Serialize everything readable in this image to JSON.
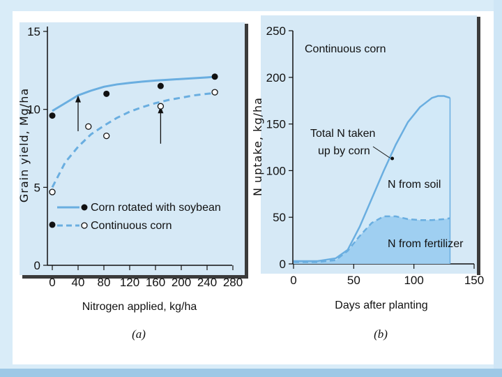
{
  "chart_data": [
    {
      "type": "line",
      "panel": "(a)",
      "xlabel": "Nitrogen applied, kg/ha",
      "ylabel": "Grain yield, Mg/ha",
      "xlim": [
        0,
        280
      ],
      "ylim": [
        0,
        15
      ],
      "x_ticks": [
        "0",
        "40",
        "80",
        "120",
        "160",
        "200",
        "240",
        "280"
      ],
      "y_ticks": [
        "0",
        "5",
        "10",
        "15"
      ],
      "legend": [
        {
          "label": "Corn rotated with soybean",
          "style": "solid",
          "marker": "filled"
        },
        {
          "label": "Continuous corn",
          "style": "dashed",
          "marker": "open"
        }
      ],
      "series": [
        {
          "name": "Corn rotated with soybean",
          "curve": {
            "x": [
              0,
              20,
              40,
              60,
              80,
              100,
              120,
              140,
              160,
              180,
              200,
              220,
              240,
              255
            ],
            "y": [
              9.9,
              10.4,
              10.9,
              11.2,
              11.45,
              11.6,
              11.7,
              11.78,
              11.85,
              11.9,
              11.95,
              12.0,
              12.05,
              12.1
            ]
          },
          "points": {
            "x": [
              0,
              84,
              168,
              252
            ],
            "y": [
              9.6,
              11.0,
              11.5,
              12.1
            ]
          }
        },
        {
          "name": "Continuous corn",
          "curve": {
            "x": [
              0,
              20,
              40,
              60,
              80,
              100,
              120,
              140,
              160,
              180,
              200,
              220,
              240,
              255
            ],
            "y": [
              5.0,
              6.6,
              7.6,
              8.4,
              8.95,
              9.45,
              9.85,
              10.15,
              10.4,
              10.6,
              10.75,
              10.9,
              11.0,
              11.05
            ]
          },
          "points": {
            "x": [
              0,
              56,
              84,
              168,
              252
            ],
            "y": [
              4.7,
              8.9,
              8.3,
              10.2,
              11.1
            ]
          }
        }
      ],
      "extra_points": [
        {
          "x": 0,
          "y": 2.6,
          "marker": "filled"
        }
      ],
      "arrows": [
        {
          "x": 40,
          "y_from": 8.6,
          "y_to": 10.9
        },
        {
          "x": 168,
          "y_from": 7.8,
          "y_to": 10.2
        }
      ]
    },
    {
      "type": "area",
      "panel": "(b)",
      "xlabel": "Days after planting",
      "ylabel": "N uptake, kg/ha",
      "xlim": [
        0,
        150
      ],
      "ylim": [
        0,
        250
      ],
      "x_ticks": [
        "0",
        "50",
        "100",
        "150"
      ],
      "y_ticks": [
        "0",
        "50",
        "100",
        "150",
        "200",
        "250"
      ],
      "title_annotation": "Continuous corn",
      "annotation": {
        "lines": [
          "Total N taken",
          "up by corn"
        ],
        "target": {
          "x": 82,
          "y": 113
        }
      },
      "region_labels": [
        "N from soil",
        "N from fertilizer"
      ],
      "series": [
        {
          "name": "Total N taken up by corn",
          "x": [
            0,
            20,
            35,
            45,
            55,
            65,
            75,
            85,
            95,
            105,
            115,
            120,
            125,
            130
          ],
          "y": [
            3,
            3,
            6,
            15,
            40,
            70,
            100,
            128,
            152,
            168,
            178,
            180,
            180,
            178
          ]
        },
        {
          "name": "N from fertilizer",
          "x": [
            0,
            20,
            35,
            45,
            55,
            65,
            75,
            85,
            95,
            105,
            115,
            125,
            130
          ],
          "y": [
            2,
            2,
            4,
            14,
            30,
            44,
            51,
            51,
            48,
            47,
            47,
            48,
            49
          ]
        }
      ]
    }
  ],
  "colors": {
    "line": "#6aaee0",
    "fill_dark": "#9fcff1",
    "fill_light": "#d2e9f8",
    "slide_bg": "#d9ecf8",
    "frame_shadow": "#3b3b3b"
  }
}
